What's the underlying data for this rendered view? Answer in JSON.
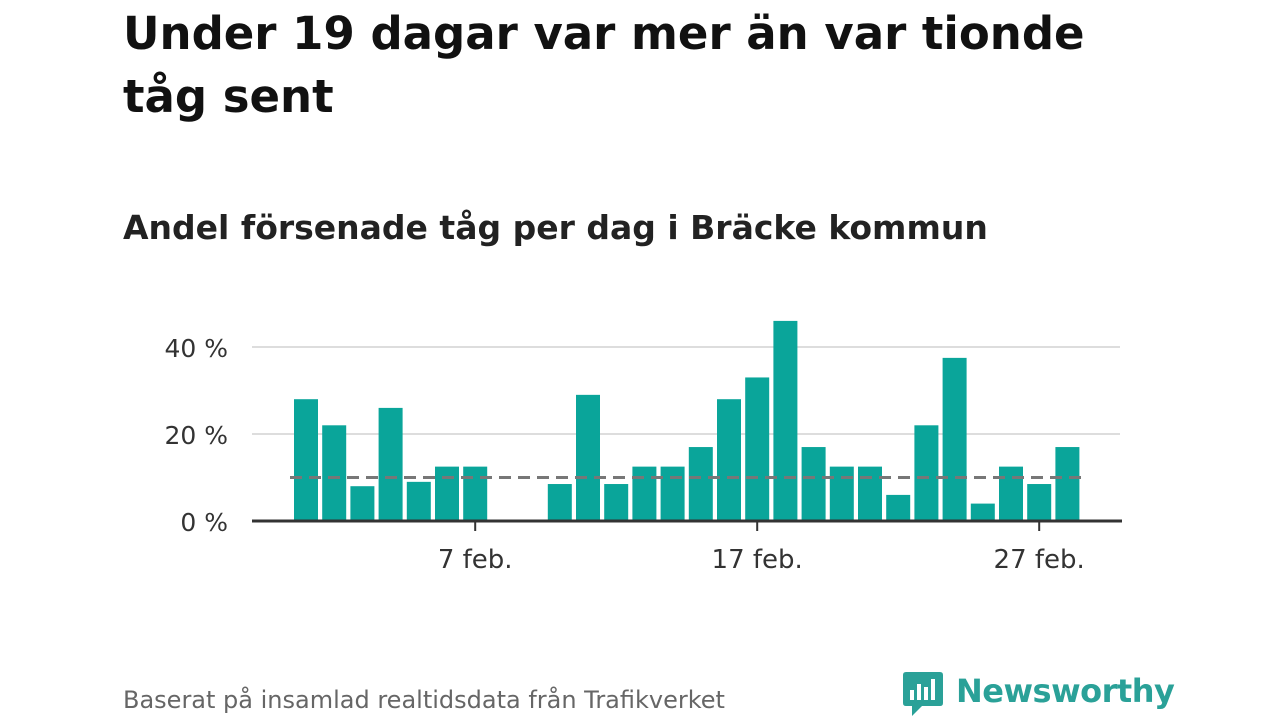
{
  "title": "Under 19 dagar var mer än var tionde tåg sent",
  "subtitle": "Andel försenade tåg per dag i Bräcke kommun",
  "footer": {
    "source": "Baserat på insamlad realtidsdata från Trafikverket",
    "brand": "Newsworthy"
  },
  "colors": {
    "bar": "#0aa59a",
    "reference_line": "#777777",
    "grid": "#dddddd",
    "axis": "#333333",
    "brand": "#2aa198"
  },
  "chart_data": {
    "type": "bar",
    "title": "Andel försenade tåg per dag i Bräcke kommun",
    "xlabel": "",
    "ylabel": "",
    "x_axis": "date",
    "x_ticks": [
      {
        "date": "2024-02-07",
        "label": "7 feb."
      },
      {
        "date": "2024-02-17",
        "label": "17 feb."
      },
      {
        "date": "2024-02-27",
        "label": "27 feb."
      }
    ],
    "y_ticks": [
      {
        "value": 0,
        "label": "0 %"
      },
      {
        "value": 20,
        "label": "20 %"
      },
      {
        "value": 40,
        "label": "40 %"
      }
    ],
    "ylim": [
      0,
      46
    ],
    "grid": true,
    "reference_line": {
      "value": 10,
      "style": "dashed"
    },
    "bars": [
      {
        "date": "2024-02-01",
        "value": 28
      },
      {
        "date": "2024-02-02",
        "value": 22
      },
      {
        "date": "2024-02-03",
        "value": 8
      },
      {
        "date": "2024-02-04",
        "value": 26
      },
      {
        "date": "2024-02-05",
        "value": 9
      },
      {
        "date": "2024-02-06",
        "value": 12.5
      },
      {
        "date": "2024-02-07",
        "value": 12.5
      },
      {
        "date": "2024-02-08",
        "value": null
      },
      {
        "date": "2024-02-09",
        "value": null
      },
      {
        "date": "2024-02-10",
        "value": 8.5
      },
      {
        "date": "2024-02-11",
        "value": 29
      },
      {
        "date": "2024-02-12",
        "value": 8.5
      },
      {
        "date": "2024-02-13",
        "value": 12.5
      },
      {
        "date": "2024-02-14",
        "value": 12.5
      },
      {
        "date": "2024-02-15",
        "value": 17
      },
      {
        "date": "2024-02-16",
        "value": 28
      },
      {
        "date": "2024-02-17",
        "value": 33
      },
      {
        "date": "2024-02-18",
        "value": 46
      },
      {
        "date": "2024-02-19",
        "value": 17
      },
      {
        "date": "2024-02-20",
        "value": 12.5
      },
      {
        "date": "2024-02-21",
        "value": 12.5
      },
      {
        "date": "2024-02-22",
        "value": 6
      },
      {
        "date": "2024-02-23",
        "value": 22
      },
      {
        "date": "2024-02-24",
        "value": 37.5
      },
      {
        "date": "2024-02-25",
        "value": 4
      },
      {
        "date": "2024-02-26",
        "value": 12.5
      },
      {
        "date": "2024-02-27",
        "value": 8.5
      },
      {
        "date": "2024-02-28",
        "value": 17
      }
    ]
  }
}
